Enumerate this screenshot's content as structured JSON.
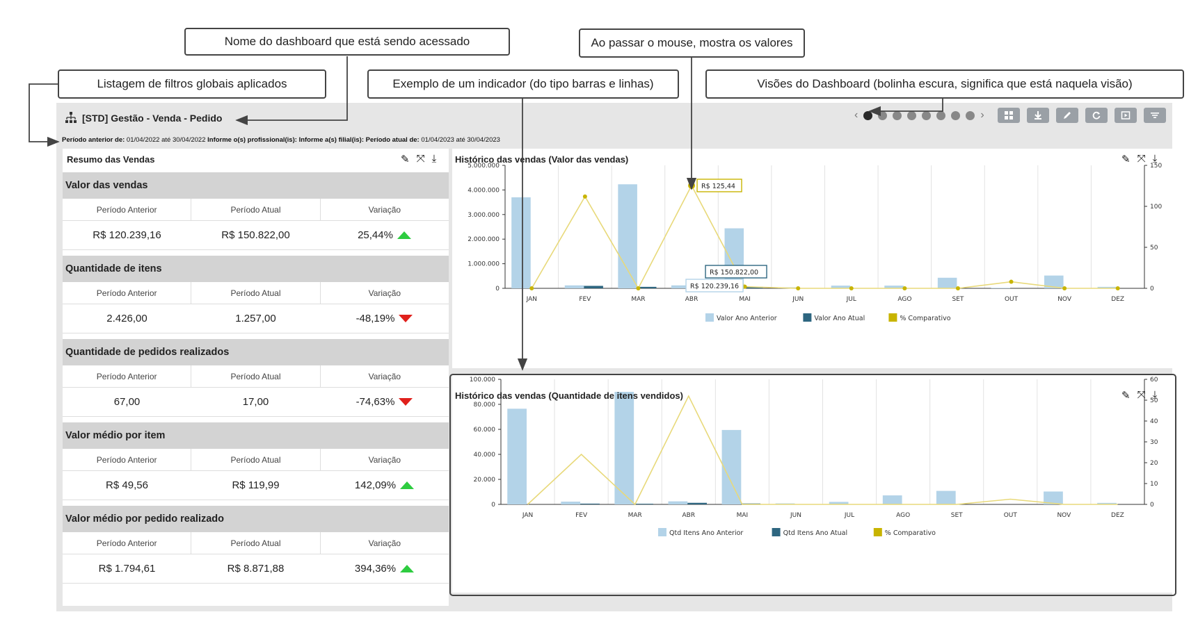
{
  "annotations": {
    "dashboard_name": "Nome do dashboard que está sendo acessado",
    "hover_values": "Ao passar o mouse, mostra os valores",
    "global_filters": "Listagem de filtros globais aplicados",
    "indicator_example": "Exemplo de um indicador (do tipo barras e linhas)",
    "views": "Visões do Dashboard (bolinha escura, significa que está naquela visão)"
  },
  "dashboard": {
    "title": "[STD] Gestão - Venda - Pedido",
    "filters": {
      "prev_label": "Período anterior de:",
      "prev_value": "01/04/2022 até 30/04/2022",
      "prof_label": "Informe o(s) profissional(is):",
      "filial_label": "Informe a(s) filial(is):",
      "cur_label": "Período atual de:",
      "cur_value": "01/04/2023 até 30/04/2023"
    },
    "views": {
      "count": 8,
      "active_index": 0
    },
    "toolbar": [
      "layout-icon",
      "download-icon",
      "edit-icon",
      "refresh-icon",
      "present-icon",
      "filter-icon"
    ]
  },
  "summary": {
    "title": "Resumo das Vendas",
    "col_prev": "Período Anterior",
    "col_cur": "Período Atual",
    "col_var": "Variação",
    "sections": [
      {
        "title": "Valor das vendas",
        "prev": "R$ 120.239,16",
        "cur": "R$ 150.822,00",
        "var": "25,44%",
        "trend": "up"
      },
      {
        "title": "Quantidade de itens",
        "prev": "2.426,00",
        "cur": "1.257,00",
        "var": "-48,19%",
        "trend": "down"
      },
      {
        "title": "Quantidade de pedidos realizados",
        "prev": "67,00",
        "cur": "17,00",
        "var": "-74,63%",
        "trend": "down"
      },
      {
        "title": "Valor médio por item",
        "prev": "R$ 49,56",
        "cur": "R$ 119,99",
        "var": "142,09%",
        "trend": "up"
      },
      {
        "title": "Valor médio por pedido realizado",
        "prev": "R$ 1.794,61",
        "cur": "R$ 8.871,88",
        "var": "394,36%",
        "trend": "up"
      }
    ]
  },
  "colors": {
    "prev": "#b3d3e8",
    "cur": "#2e6680",
    "pct": "#e8d97a",
    "pct_legend": "#c8b400",
    "up": "#2ecc40",
    "down": "#e0201c"
  },
  "chart_data": [
    {
      "type": "bar",
      "title": "Histórico das vendas (Valor das vendas)",
      "categories": [
        "JAN",
        "FEV",
        "MAR",
        "ABR",
        "MAI",
        "JUN",
        "JUL",
        "AGO",
        "SET",
        "OUT",
        "NOV",
        "DEZ"
      ],
      "ylim": [
        0,
        5000000
      ],
      "yticks": [
        "0",
        "1.000.000",
        "2.000.000",
        "3.000.000",
        "4.000.000",
        "5.000.000"
      ],
      "y2lim": [
        0,
        150
      ],
      "y2ticks": [
        "0",
        "50",
        "100",
        "150"
      ],
      "series": [
        {
          "name": "Valor Ano Anterior",
          "kind": "bar",
          "values": [
            3700000,
            120000,
            4230000,
            120239,
            2440000,
            40000,
            110000,
            110000,
            430000,
            20000,
            520000,
            60000
          ]
        },
        {
          "name": "Valor Ano Atual",
          "kind": "bar",
          "values": [
            0,
            100000,
            60000,
            150822,
            60000,
            0,
            0,
            0,
            0,
            0,
            0,
            0
          ]
        },
        {
          "name": "% Comparativo",
          "kind": "line",
          "axis": "right",
          "values": [
            0,
            112,
            0,
            125.44,
            2,
            0,
            0,
            0,
            0,
            8,
            0,
            0
          ]
        }
      ],
      "tooltips": [
        "R$ 125,44",
        "R$ 150.822,00",
        "R$ 120.239,16"
      ]
    },
    {
      "type": "bar",
      "title": "Histórico das vendas (Quantidade de itens vendidos)",
      "categories": [
        "JAN",
        "FEV",
        "MAR",
        "ABR",
        "MAI",
        "JUN",
        "JUL",
        "AGO",
        "SET",
        "OUT",
        "NOV",
        "DEZ"
      ],
      "ylim": [
        0,
        100000
      ],
      "yticks": [
        "0",
        "20.000",
        "40.000",
        "60.000",
        "80.000",
        "100.000"
      ],
      "y2lim": [
        0,
        60
      ],
      "y2ticks": [
        "0",
        "10",
        "20",
        "30",
        "40",
        "50",
        "60"
      ],
      "series": [
        {
          "name": "Qtd Itens Ano Anterior",
          "kind": "bar",
          "values": [
            76500,
            2200,
            90000,
            2426,
            59500,
            800,
            2000,
            7200,
            10800,
            0,
            10300,
            1200
          ]
        },
        {
          "name": "Qtd Itens Ano Atual",
          "kind": "bar",
          "values": [
            0,
            600,
            500,
            1257,
            700,
            0,
            0,
            0,
            0,
            0,
            0,
            0
          ]
        },
        {
          "name": "% Comparativo",
          "kind": "line",
          "axis": "right",
          "values": [
            0,
            24,
            0,
            52,
            0,
            0,
            0,
            0,
            0,
            2.5,
            0,
            0
          ]
        }
      ]
    }
  ]
}
